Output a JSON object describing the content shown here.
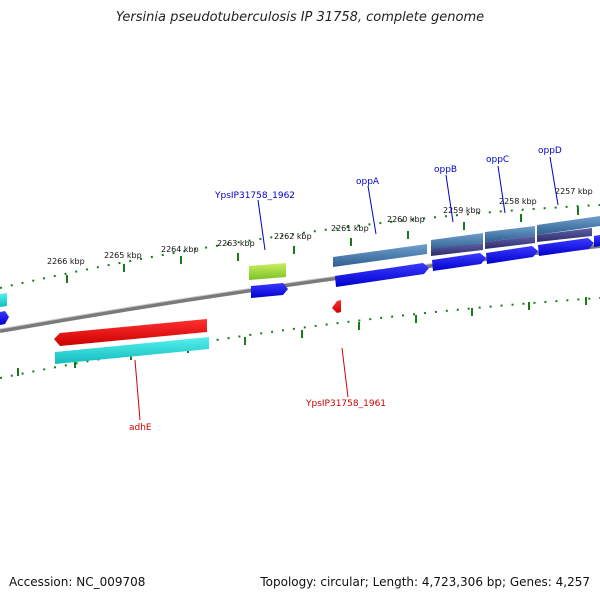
{
  "header": {
    "title": "Yersinia pseudotuberculosis IP 31758, complete genome"
  },
  "footer": {
    "accession": "Accession: NC_009708",
    "topology": "Topology: circular; Length: 4,723,306 bp; Genes: 4,257"
  },
  "ruler": {
    "labels": [
      "2266 kbp",
      "2265 kbp",
      "2264 kbp",
      "2263 kbp",
      "2262 kbp",
      "2261 kbp",
      "2260 kbp",
      "2259 kbp",
      "2258 kbp",
      "2257 kbp"
    ]
  },
  "gene_labels": {
    "forward": [
      "YpsIP31758_1962",
      "oppA",
      "oppB",
      "oppC",
      "oppD"
    ],
    "reverse": [
      "adhE",
      "YpsIP31758_1961"
    ]
  },
  "colors": {
    "label_forward": "#0000cc",
    "label_reverse": "#cc0000",
    "tick": "#1a7a1a",
    "backbone": "#888888",
    "cds_forward": "#0000ee",
    "cds_reverse_red": "#ee0000",
    "cds_cyan": "#22dddd",
    "feature_green": "#99dd33",
    "feature_steel": "#4a7aaa",
    "feature_purple": "#44448a"
  }
}
